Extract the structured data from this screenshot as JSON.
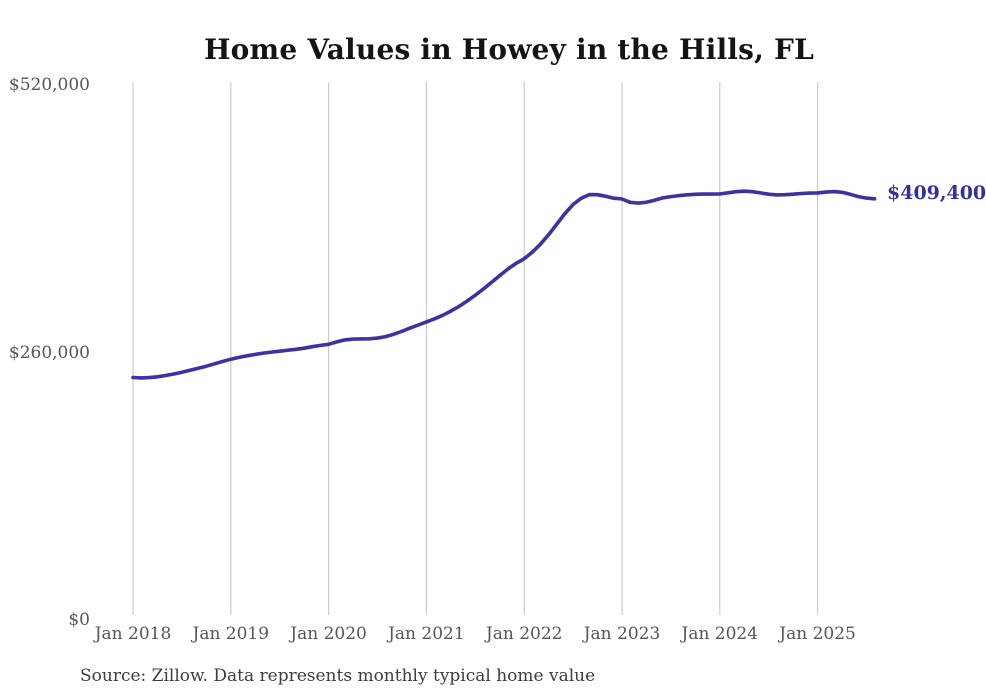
{
  "page": {
    "background": "#ffffff"
  },
  "chart": {
    "title": "Home Values in Howey in the Hills, FL",
    "end_label": "$409,400",
    "source_note": "Source: Zillow. Data represents monthly typical home value",
    "line_color": "#3a33a3",
    "end_label_color": "#32319e",
    "gridline_color": "#cbcbcb",
    "tick_label_color": "#565656",
    "title_color": "#141414",
    "source_color": "#3d3d3d"
  },
  "chart_data": {
    "type": "line",
    "title": "Home Values in Howey in the Hills, FL",
    "series_name": "Monthly typical home value",
    "xlabel": "",
    "ylabel": "",
    "ylim": [
      0,
      520000
    ],
    "grid": "vertical-only",
    "legend": "none",
    "yticks": {
      "values": [
        0,
        260000,
        520000
      ],
      "labels": [
        "$0",
        "$260,000",
        "$520,000"
      ]
    },
    "xticks": {
      "labels": [
        "Jan 2018",
        "Jan 2019",
        "Jan 2020",
        "Jan 2021",
        "Jan 2022",
        "Jan 2023",
        "Jan 2024",
        "Jan 2025"
      ]
    },
    "annotation": {
      "text": "$409,400",
      "attach": "line-end"
    },
    "source": "Source: Zillow. Data represents monthly typical home value",
    "x": [
      "2018-01",
      "2018-02",
      "2018-03",
      "2018-04",
      "2018-05",
      "2018-06",
      "2018-07",
      "2018-08",
      "2018-09",
      "2018-10",
      "2018-11",
      "2018-12",
      "2019-01",
      "2019-02",
      "2019-03",
      "2019-04",
      "2019-05",
      "2019-06",
      "2019-07",
      "2019-08",
      "2019-09",
      "2019-10",
      "2019-11",
      "2019-12",
      "2020-01",
      "2020-02",
      "2020-03",
      "2020-04",
      "2020-05",
      "2020-06",
      "2020-07",
      "2020-08",
      "2020-09",
      "2020-10",
      "2020-11",
      "2020-12",
      "2021-01",
      "2021-02",
      "2021-03",
      "2021-04",
      "2021-05",
      "2021-06",
      "2021-07",
      "2021-08",
      "2021-09",
      "2021-10",
      "2021-11",
      "2021-12",
      "2022-01",
      "2022-02",
      "2022-03",
      "2022-04",
      "2022-05",
      "2022-06",
      "2022-07",
      "2022-08",
      "2022-09",
      "2022-10",
      "2022-11",
      "2022-12",
      "2023-01",
      "2023-02",
      "2023-03",
      "2023-04",
      "2023-05",
      "2023-06",
      "2023-07",
      "2023-08",
      "2023-09",
      "2023-10",
      "2023-11",
      "2023-12",
      "2024-01",
      "2024-02",
      "2024-03",
      "2024-04",
      "2024-05",
      "2024-06",
      "2024-07",
      "2024-08",
      "2024-09",
      "2024-10",
      "2024-11",
      "2024-12",
      "2025-01",
      "2025-02",
      "2025-03",
      "2025-04",
      "2025-05",
      "2025-06",
      "2025-07",
      "2025-08"
    ],
    "values": [
      235700,
      235300,
      235600,
      236400,
      237600,
      239100,
      240900,
      242700,
      244600,
      246700,
      249000,
      251300,
      253500,
      255200,
      256800,
      258200,
      259400,
      260400,
      261300,
      262200,
      263100,
      264200,
      265600,
      266900,
      268000,
      270300,
      272200,
      273000,
      273200,
      273300,
      274000,
      275500,
      277800,
      280600,
      283700,
      286700,
      289700,
      292800,
      296200,
      300200,
      304800,
      310000,
      315700,
      321800,
      328200,
      334800,
      341200,
      346600,
      351200,
      357500,
      365400,
      374600,
      384800,
      395100,
      403900,
      410000,
      413500,
      413400,
      411800,
      410000,
      409200,
      406000,
      405200,
      406000,
      408000,
      410300,
      411500,
      412500,
      413300,
      413800,
      414000,
      414000,
      414100,
      415200,
      416300,
      416800,
      416300,
      415100,
      413900,
      413200,
      413400,
      413900,
      414500,
      414900,
      415100,
      415900,
      416400,
      415700,
      413800,
      411500,
      410100,
      409400
    ]
  }
}
